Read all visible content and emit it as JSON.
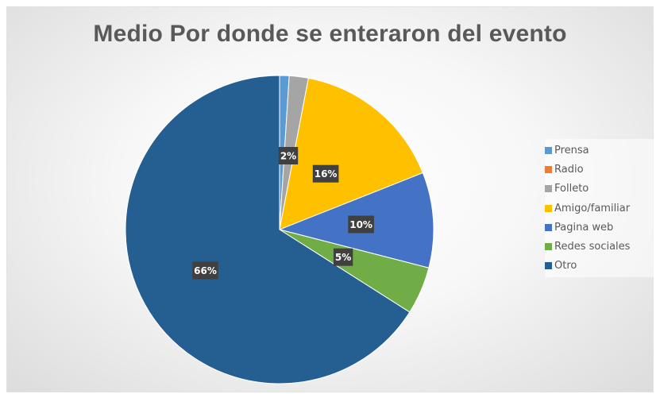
{
  "chart_data": {
    "type": "pie",
    "title": "Medio Por donde se enteraron del evento",
    "legend_position": "right",
    "categories": [
      "Prensa",
      "Radio",
      "Folleto",
      "Amigo/familiar",
      "Pagina web",
      "Redes sociales",
      "Otro"
    ],
    "values": [
      1,
      0,
      2,
      16,
      10,
      5,
      66
    ],
    "data_labels": [
      "",
      "",
      "2%",
      "16%",
      "10%",
      "5%",
      "66%"
    ],
    "colors": [
      "#5b9bd5",
      "#ed7d31",
      "#a5a5a5",
      "#ffc000",
      "#4472c4",
      "#70ad47",
      "#255e91"
    ]
  }
}
